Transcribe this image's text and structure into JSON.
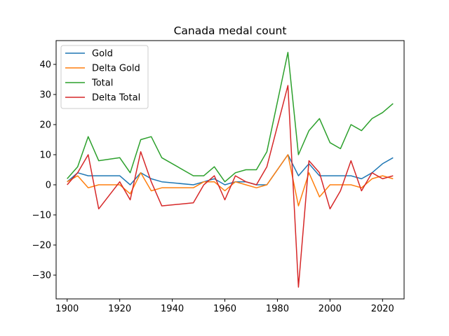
{
  "chart_data": {
    "type": "line",
    "title": "Canada medal count",
    "xlabel": "",
    "ylabel": "",
    "xlim": [
      1895.8,
      2028.2
    ],
    "ylim": [
      -37.9,
      47.9
    ],
    "xticks": [
      1900,
      1920,
      1940,
      1960,
      1980,
      2000,
      2020
    ],
    "yticks": [
      -30,
      -20,
      -10,
      0,
      10,
      20,
      30,
      40
    ],
    "ytick_labels": [
      "−30",
      "−20",
      "−10",
      "0",
      "10",
      "20",
      "30",
      "40"
    ],
    "grid": false,
    "legend_position": "top-left",
    "x": [
      1900,
      1904,
      1908,
      1912,
      1920,
      1924,
      1928,
      1932,
      1936,
      1948,
      1952,
      1956,
      1960,
      1964,
      1968,
      1972,
      1976,
      1984,
      1988,
      1992,
      1996,
      2000,
      2004,
      2008,
      2012,
      2016,
      2020,
      2024
    ],
    "series": [
      {
        "name": "Gold",
        "color": "#1f77b4",
        "values": [
          1,
          4,
          3,
          3,
          3,
          0,
          4,
          2,
          1,
          0,
          1,
          2,
          0,
          1,
          1,
          0,
          0,
          10,
          3,
          7,
          3,
          3,
          3,
          3,
          2,
          4,
          7,
          9
        ]
      },
      {
        "name": "Delta Gold",
        "color": "#ff7f0e",
        "values": [
          1,
          3,
          -1,
          0,
          0,
          -3,
          4,
          -2,
          -1,
          -1,
          1,
          1,
          -2,
          1,
          0,
          -1,
          0,
          10,
          -7,
          4,
          -4,
          0,
          0,
          0,
          -1,
          2,
          3,
          2
        ]
      },
      {
        "name": "Total",
        "color": "#2ca02c",
        "values": [
          2,
          6,
          16,
          8,
          9,
          4,
          15,
          16,
          9,
          3,
          3,
          6,
          1,
          4,
          5,
          5,
          11,
          44,
          10,
          18,
          22,
          14,
          12,
          20,
          18,
          22,
          24,
          27
        ]
      },
      {
        "name": "Delta Total",
        "color": "#d62728",
        "values": [
          0,
          4,
          10,
          -8,
          1,
          -5,
          11,
          1,
          -7,
          -6,
          0,
          3,
          -5,
          3,
          1,
          0,
          6,
          33,
          -34,
          8,
          4,
          -8,
          -2,
          8,
          -2,
          4,
          2,
          3
        ]
      }
    ]
  }
}
